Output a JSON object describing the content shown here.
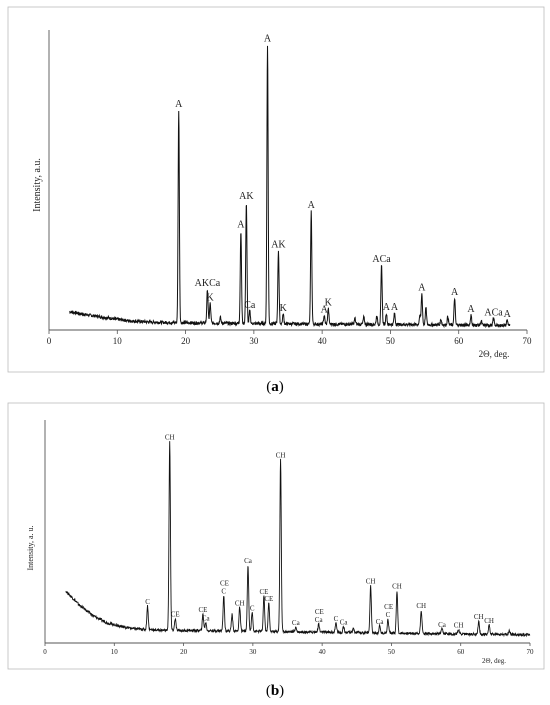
{
  "chart_data": [
    {
      "id": "a",
      "type": "line",
      "caption_open": "(",
      "caption_letter": "a",
      "caption_close": ")",
      "ylabel": "Intensity, a.u.",
      "xlabel": "2Θ, deg.",
      "xlim": [
        0,
        70
      ],
      "ylim": [
        0,
        100
      ],
      "xticks": [
        0,
        10,
        20,
        30,
        40,
        50,
        60,
        70
      ],
      "grid": false,
      "baseline": [
        [
          3,
          6.5
        ],
        [
          5,
          5.6
        ],
        [
          8,
          4.5
        ],
        [
          10,
          3.8
        ],
        [
          12,
          3.2
        ],
        [
          15,
          2.8
        ],
        [
          18,
          2.6
        ],
        [
          22,
          2.5
        ],
        [
          30,
          2.3
        ],
        [
          40,
          2.1
        ],
        [
          50,
          2.0
        ],
        [
          60,
          1.8
        ],
        [
          67.5,
          1.6
        ]
      ],
      "peaks": [
        {
          "x": 19.0,
          "h": 75.5,
          "label": "A"
        },
        {
          "x": 23.2,
          "h": 12.0,
          "label": "AKCa"
        },
        {
          "x": 23.6,
          "h": 7.0,
          "label": "K"
        },
        {
          "x": 25.1,
          "h": 2.0,
          "label": ""
        },
        {
          "x": 28.1,
          "h": 33.0,
          "label": "A"
        },
        {
          "x": 28.9,
          "h": 43.0,
          "label": "AK"
        },
        {
          "x": 29.4,
          "h": 4.5,
          "label": "Ca"
        },
        {
          "x": 32.0,
          "h": 99.0,
          "label": "A"
        },
        {
          "x": 33.6,
          "h": 26.0,
          "label": "AK"
        },
        {
          "x": 34.3,
          "h": 3.5,
          "label": "K"
        },
        {
          "x": 38.4,
          "h": 40.0,
          "label": "A"
        },
        {
          "x": 40.3,
          "h": 3.0,
          "label": "A"
        },
        {
          "x": 40.9,
          "h": 5.5,
          "label": "K"
        },
        {
          "x": 44.8,
          "h": 2.0,
          "label": ""
        },
        {
          "x": 46.1,
          "h": 2.5,
          "label": ""
        },
        {
          "x": 48.0,
          "h": 3.0,
          "label": ""
        },
        {
          "x": 48.7,
          "h": 21.0,
          "label": "ACa"
        },
        {
          "x": 49.4,
          "h": 4.0,
          "label": "A"
        },
        {
          "x": 50.6,
          "h": 4.0,
          "label": "A"
        },
        {
          "x": 54.3,
          "h": 3.0,
          "label": ""
        },
        {
          "x": 54.6,
          "h": 11.0,
          "label": "A"
        },
        {
          "x": 55.2,
          "h": 6.0,
          "label": ""
        },
        {
          "x": 57.4,
          "h": 2.0,
          "label": ""
        },
        {
          "x": 58.4,
          "h": 3.0,
          "label": ""
        },
        {
          "x": 59.4,
          "h": 9.5,
          "label": "A"
        },
        {
          "x": 61.8,
          "h": 3.5,
          "label": "A"
        },
        {
          "x": 63.3,
          "h": 1.5,
          "label": ""
        },
        {
          "x": 65.1,
          "h": 2.5,
          "label": "ACa"
        },
        {
          "x": 67.1,
          "h": 2.0,
          "label": "A"
        }
      ]
    },
    {
      "id": "b",
      "type": "line",
      "caption_open": "(",
      "caption_letter": "b",
      "caption_close": ")",
      "ylabel": "Intensity, a. u.",
      "xlabel": "2Θ, deg.",
      "xlim": [
        0,
        70
      ],
      "ylim": [
        0,
        100
      ],
      "xticks": [
        0,
        10,
        20,
        30,
        40,
        50,
        60,
        70
      ],
      "grid": false,
      "baseline": [
        [
          3,
          22
        ],
        [
          5,
          16
        ],
        [
          7,
          11.5
        ],
        [
          9,
          8.5
        ],
        [
          11,
          7
        ],
        [
          13,
          6
        ],
        [
          16,
          5.5
        ],
        [
          20,
          5.3
        ],
        [
          25,
          5.2
        ],
        [
          30,
          5.0
        ],
        [
          40,
          4.6
        ],
        [
          50,
          4.2
        ],
        [
          60,
          3.8
        ],
        [
          70,
          3.5
        ]
      ],
      "peaks": [
        {
          "x": 14.8,
          "h": 10.0,
          "label": "C"
        },
        {
          "x": 18.0,
          "h": 80.0,
          "label": "CH"
        },
        {
          "x": 18.8,
          "h": 5.0,
          "label": "CE"
        },
        {
          "x": 22.8,
          "h": 7.0,
          "label": "CE"
        },
        {
          "x": 23.2,
          "h": 3.5,
          "label": "Ca"
        },
        {
          "x": 25.8,
          "h": 15.0,
          "label": "C"
        },
        {
          "x": 25.9,
          "h": 0,
          "label": "CE"
        },
        {
          "x": 27.0,
          "h": 7.0,
          "label": ""
        },
        {
          "x": 28.1,
          "h": 10.0,
          "label": "CH"
        },
        {
          "x": 29.3,
          "h": 28.0,
          "label": "Ca"
        },
        {
          "x": 29.9,
          "h": 8.0,
          "label": "C"
        },
        {
          "x": 31.6,
          "h": 15.0,
          "label": "CE"
        },
        {
          "x": 32.3,
          "h": 12.0,
          "label": "CE"
        },
        {
          "x": 34.0,
          "h": 73.0,
          "label": "CH"
        },
        {
          "x": 36.2,
          "h": 2.0,
          "label": "Ca"
        },
        {
          "x": 39.5,
          "h": 3.5,
          "label": "Ca"
        },
        {
          "x": 39.6,
          "h": 0,
          "label": "CE"
        },
        {
          "x": 42.0,
          "h": 4.0,
          "label": "C"
        },
        {
          "x": 43.1,
          "h": 2.5,
          "label": "Ca"
        },
        {
          "x": 44.5,
          "h": 2.0,
          "label": ""
        },
        {
          "x": 47.0,
          "h": 20.0,
          "label": "CH"
        },
        {
          "x": 48.3,
          "h": 3.0,
          "label": "Ca"
        },
        {
          "x": 49.5,
          "h": 6.0,
          "label": "C"
        },
        {
          "x": 49.6,
          "h": 0,
          "label": "CE"
        },
        {
          "x": 50.8,
          "h": 18.0,
          "label": "CH"
        },
        {
          "x": 54.3,
          "h": 10.0,
          "label": "CH"
        },
        {
          "x": 57.3,
          "h": 2.0,
          "label": "Ca"
        },
        {
          "x": 59.7,
          "h": 2.0,
          "label": "CH"
        },
        {
          "x": 62.6,
          "h": 5.5,
          "label": "CH"
        },
        {
          "x": 64.1,
          "h": 4.0,
          "label": "CH"
        },
        {
          "x": 67.0,
          "h": 1.5,
          "label": ""
        }
      ]
    }
  ]
}
